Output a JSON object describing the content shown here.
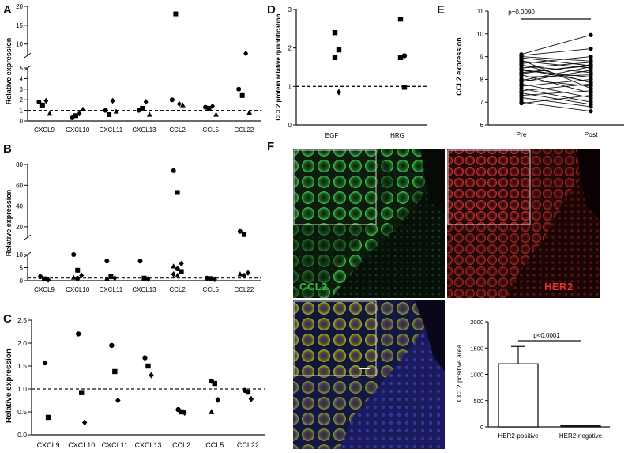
{
  "panels": {
    "A": {
      "letter": "A",
      "ylabel": "Relative expression"
    },
    "B": {
      "letter": "B",
      "ylabel": "Relative expression"
    },
    "C": {
      "letter": "C",
      "ylabel": "Relative expression"
    },
    "D": {
      "letter": "D",
      "ylabel": "CCL2 protein relative quantification"
    },
    "E": {
      "letter": "E",
      "ylabel": "CCL2 expression",
      "pvalue": "p=0.0090"
    },
    "F": {
      "letter": "F",
      "ccl2_label": "CCL2",
      "her2_label": "HER2",
      "bar_ylabel": "CCL2 positive area",
      "bar_pvalue": "p<0.0001"
    }
  },
  "colors": {
    "ccl2": "#2fbf3a",
    "her2": "#e03030",
    "dapi": "#2a2a8a"
  },
  "chart_data": [
    {
      "id": "A",
      "type": "scatter",
      "categories": [
        "CXCL9",
        "CXCL10",
        "CXCL11",
        "CXCL13",
        "CCL2",
        "CCL5",
        "CCL22"
      ],
      "ylabel": "Relative expression",
      "axis_breaks": [
        {
          "lower_ylim": [
            0,
            5
          ],
          "lower_ticks": [
            0,
            1,
            2,
            3,
            4,
            5
          ],
          "upper_ylim": [
            7,
            20
          ],
          "upper_ticks": [
            10,
            15,
            20
          ]
        }
      ],
      "reference_line": 1,
      "series": [
        {
          "marker": "circle",
          "values": [
            1.8,
            0.3,
            1.0,
            1.0,
            2.0,
            1.3,
            3.0
          ]
        },
        {
          "marker": "square",
          "values": [
            1.5,
            0.5,
            0.6,
            1.2,
            18.0,
            1.2,
            2.4
          ]
        },
        {
          "marker": "diamond",
          "values": [
            1.9,
            0.7,
            1.9,
            1.8,
            1.6,
            1.4,
            7.5
          ]
        },
        {
          "marker": "triangle",
          "values": [
            0.7,
            1.1,
            0.9,
            0.6,
            1.5,
            0.6,
            0.8
          ]
        }
      ]
    },
    {
      "id": "B",
      "type": "scatter",
      "categories": [
        "CXCL9",
        "CXCL10",
        "CXCL11",
        "CXCL13",
        "CCL2",
        "CCL5",
        "CCL22"
      ],
      "ylabel": "Relative expression",
      "axis_breaks": [
        {
          "lower_ylim": [
            0,
            10
          ],
          "lower_ticks": [
            0,
            5,
            10
          ],
          "upper_ylim": [
            10,
            80
          ],
          "upper_ticks": [
            20,
            40,
            60,
            80
          ]
        }
      ],
      "reference_line": 1,
      "series_points": [
        {
          "category": "CXCL9",
          "points": [
            1.5,
            0.7,
            0.3
          ]
        },
        {
          "category": "CXCL10",
          "points": [
            10.0,
            4.0,
            2.0,
            1.2,
            0.9
          ]
        },
        {
          "category": "CXCL11",
          "points": [
            7.5,
            1.5,
            1.0,
            0.8
          ]
        },
        {
          "category": "CXCL13",
          "points": [
            7.5,
            1.0,
            0.6
          ]
        },
        {
          "category": "CCL2",
          "points": [
            74,
            53,
            6.5,
            5.5,
            4.5,
            3.5,
            2.5,
            2.0
          ]
        },
        {
          "category": "CCL5",
          "points": [
            1.0,
            0.8,
            0.5
          ]
        },
        {
          "category": "CCL22",
          "points": [
            15.5,
            12.5,
            3.0,
            2.5,
            2.0
          ]
        }
      ]
    },
    {
      "id": "C",
      "type": "scatter",
      "categories": [
        "CXCL9",
        "CXCL10",
        "CXCL11",
        "CXCL13",
        "CCL2",
        "CCL5",
        "CCL22"
      ],
      "ylabel": "Relative expression",
      "ylim": [
        0,
        2.5
      ],
      "yticks": [
        0.0,
        0.5,
        1.0,
        1.5,
        2.0,
        2.5
      ],
      "reference_line": 1.0,
      "series_points": [
        {
          "category": "CXCL9",
          "points": [
            1.57,
            0.38
          ]
        },
        {
          "category": "CXCL10",
          "points": [
            2.2,
            0.92,
            0.27
          ]
        },
        {
          "category": "CXCL11",
          "points": [
            1.95,
            1.38,
            0.75
          ]
        },
        {
          "category": "CXCL13",
          "points": [
            1.68,
            1.5,
            1.3
          ]
        },
        {
          "category": "CCL2",
          "points": [
            0.55,
            0.5,
            0.48
          ]
        },
        {
          "category": "CCL5",
          "points": [
            1.17,
            1.12,
            0.76,
            0.5
          ]
        },
        {
          "category": "CCL22",
          "points": [
            0.97,
            0.93,
            0.78
          ]
        }
      ]
    },
    {
      "id": "D",
      "type": "scatter",
      "categories": [
        "EGF",
        "HRG"
      ],
      "ylabel": "CCL2 protein relative quantification",
      "ylim": [
        0,
        3
      ],
      "yticks": [
        0,
        1,
        2,
        3
      ],
      "reference_line": 1,
      "series_points": [
        {
          "category": "EGF",
          "points": [
            2.4,
            1.95,
            1.75,
            0.85
          ]
        },
        {
          "category": "HRG",
          "points": [
            2.75,
            1.8,
            1.75,
            0.98
          ]
        }
      ]
    },
    {
      "id": "E",
      "type": "line",
      "categories": [
        "Pre",
        "Post"
      ],
      "ylabel": "CCL2 expression",
      "ylim": [
        6,
        11
      ],
      "yticks": [
        6,
        7,
        8,
        9,
        10,
        11
      ],
      "annotation": "p=0.0090",
      "pairs": [
        [
          9.1,
          9.95
        ],
        [
          9.05,
          9.35
        ],
        [
          9.0,
          8.8
        ],
        [
          8.95,
          8.6
        ],
        [
          8.9,
          8.9
        ],
        [
          8.85,
          7.6
        ],
        [
          8.8,
          8.5
        ],
        [
          8.7,
          9.0
        ],
        [
          8.6,
          8.3
        ],
        [
          8.5,
          8.75
        ],
        [
          8.45,
          7.9
        ],
        [
          8.4,
          8.1
        ],
        [
          8.3,
          8.6
        ],
        [
          8.2,
          7.4
        ],
        [
          8.1,
          8.2
        ],
        [
          8.0,
          7.7
        ],
        [
          7.9,
          8.4
        ],
        [
          7.8,
          7.2
        ],
        [
          7.7,
          8.0
        ],
        [
          7.6,
          7.0
        ],
        [
          7.5,
          7.8
        ],
        [
          7.4,
          6.9
        ],
        [
          7.3,
          7.5
        ],
        [
          7.2,
          6.8
        ],
        [
          7.1,
          7.1
        ],
        [
          7.0,
          6.6
        ],
        [
          6.95,
          7.3
        ],
        [
          8.25,
          8.65
        ],
        [
          7.95,
          8.55
        ],
        [
          8.65,
          7.85
        ]
      ]
    },
    {
      "id": "F",
      "type": "bar",
      "categories": [
        "HER2-positive",
        "HER2-negative"
      ],
      "values": [
        1200,
        20
      ],
      "errors": [
        330,
        5
      ],
      "ylabel": "CCL2 positive area",
      "ylim": [
        0,
        2000
      ],
      "yticks": [
        0,
        500,
        1000,
        1500,
        2000
      ],
      "annotation": "p<0.0001"
    }
  ]
}
